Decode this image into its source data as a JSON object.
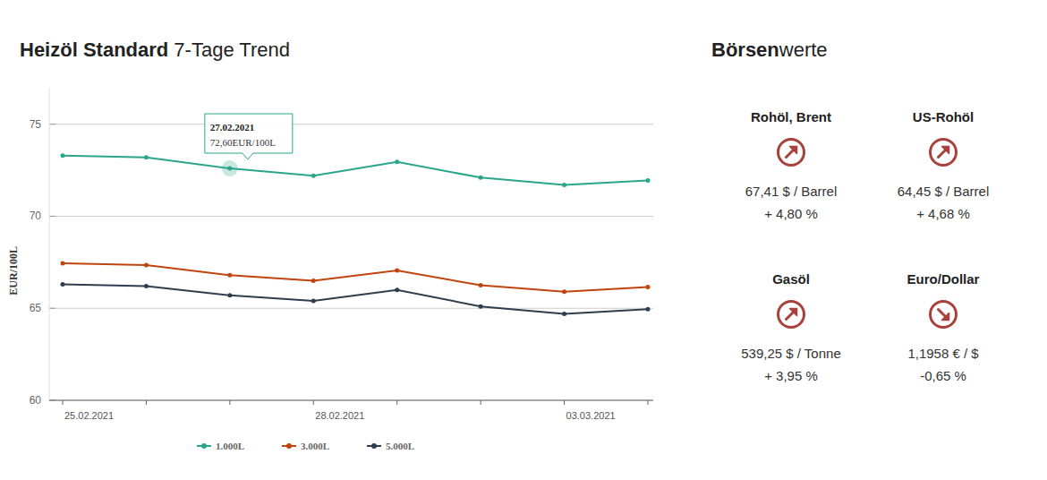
{
  "chart_data": {
    "type": "line",
    "title": "Heizöl Standard",
    "subtitle": "7-Tage Trend",
    "y_label": "EUR/100L",
    "categories": [
      "25.02.2021",
      null,
      null,
      "28.02.2021",
      null,
      null,
      "03.03.2021",
      null
    ],
    "series": [
      {
        "name": "1.000L",
        "color": "#2aa58c",
        "marker": "circle",
        "values": [
          73.3,
          73.2,
          72.6,
          72.2,
          72.95,
          72.1,
          71.7,
          71.95
        ]
      },
      {
        "name": "3.000L",
        "color": "#c0440f",
        "marker": "circle",
        "values": [
          67.45,
          67.35,
          66.8,
          66.5,
          67.05,
          66.25,
          65.9,
          66.15
        ]
      },
      {
        "name": "5.000L",
        "color": "#2f3e4e",
        "marker": "circle",
        "values": [
          66.3,
          66.2,
          65.7,
          65.4,
          66.0,
          65.1,
          64.7,
          64.95
        ]
      }
    ],
    "ylim": [
      60,
      77
    ],
    "yticks": [
      60,
      65,
      70,
      75
    ],
    "grid": true,
    "legend": "bottom",
    "annotations": [
      {
        "series": 0,
        "index": 2,
        "title": "27.02.2021",
        "label": "72,60EUR/100L",
        "value": 72.6
      }
    ]
  },
  "panel": {
    "title": "Börsen",
    "title_rest": "werte",
    "items": [
      {
        "name": "Rohöl, Brent",
        "direction": "up",
        "value": "67,41 $ / Barrel",
        "change": "+ 4,80 %"
      },
      {
        "name": "US-Rohöl",
        "direction": "up",
        "value": "64,45 $ / Barrel",
        "change": "+ 4,68 %"
      },
      {
        "name": "Gasöl",
        "direction": "up",
        "value": "539,25 $ / Tonne",
        "change": "+ 3,95 %"
      },
      {
        "name": "Euro/Dollar",
        "direction": "down",
        "value": "1,1958 € / $",
        "change": "-0,65 %"
      }
    ]
  }
}
